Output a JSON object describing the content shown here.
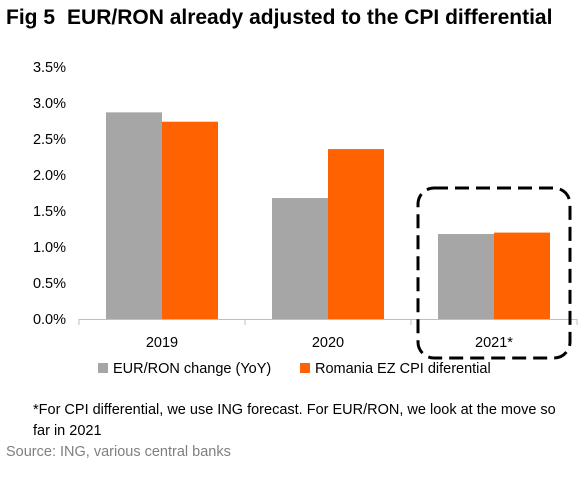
{
  "figure": {
    "fig_label": "Fig 5",
    "title": "EUR/RON already adjusted to the CPI differential",
    "note": "*For CPI differential, we use ING forecast. For EUR/RON, we look at the move so far in 2021",
    "source": "Source: ING, various central banks"
  },
  "chart_data": {
    "type": "bar",
    "title": "EUR/RON already adjusted to the CPI differential",
    "xlabel": "",
    "ylabel": "",
    "categories": [
      "2019",
      "2020",
      "2021*"
    ],
    "series": [
      {
        "name": "EUR/RON change (YoY)",
        "values": [
          2.87,
          1.68,
          1.18
        ],
        "color": "#a6a6a6"
      },
      {
        "name": "Romania EZ CPI diferential",
        "values": [
          2.74,
          2.36,
          1.2
        ],
        "color": "#ff6200"
      }
    ],
    "yticks": [
      "0.0%",
      "0.5%",
      "1.0%",
      "1.5%",
      "2.0%",
      "2.5%",
      "3.0%",
      "3.5%"
    ],
    "ylim": [
      0,
      3.5
    ],
    "grid": false,
    "legend_position": "bottom",
    "highlight": "dashed rounded box around 2021*"
  }
}
